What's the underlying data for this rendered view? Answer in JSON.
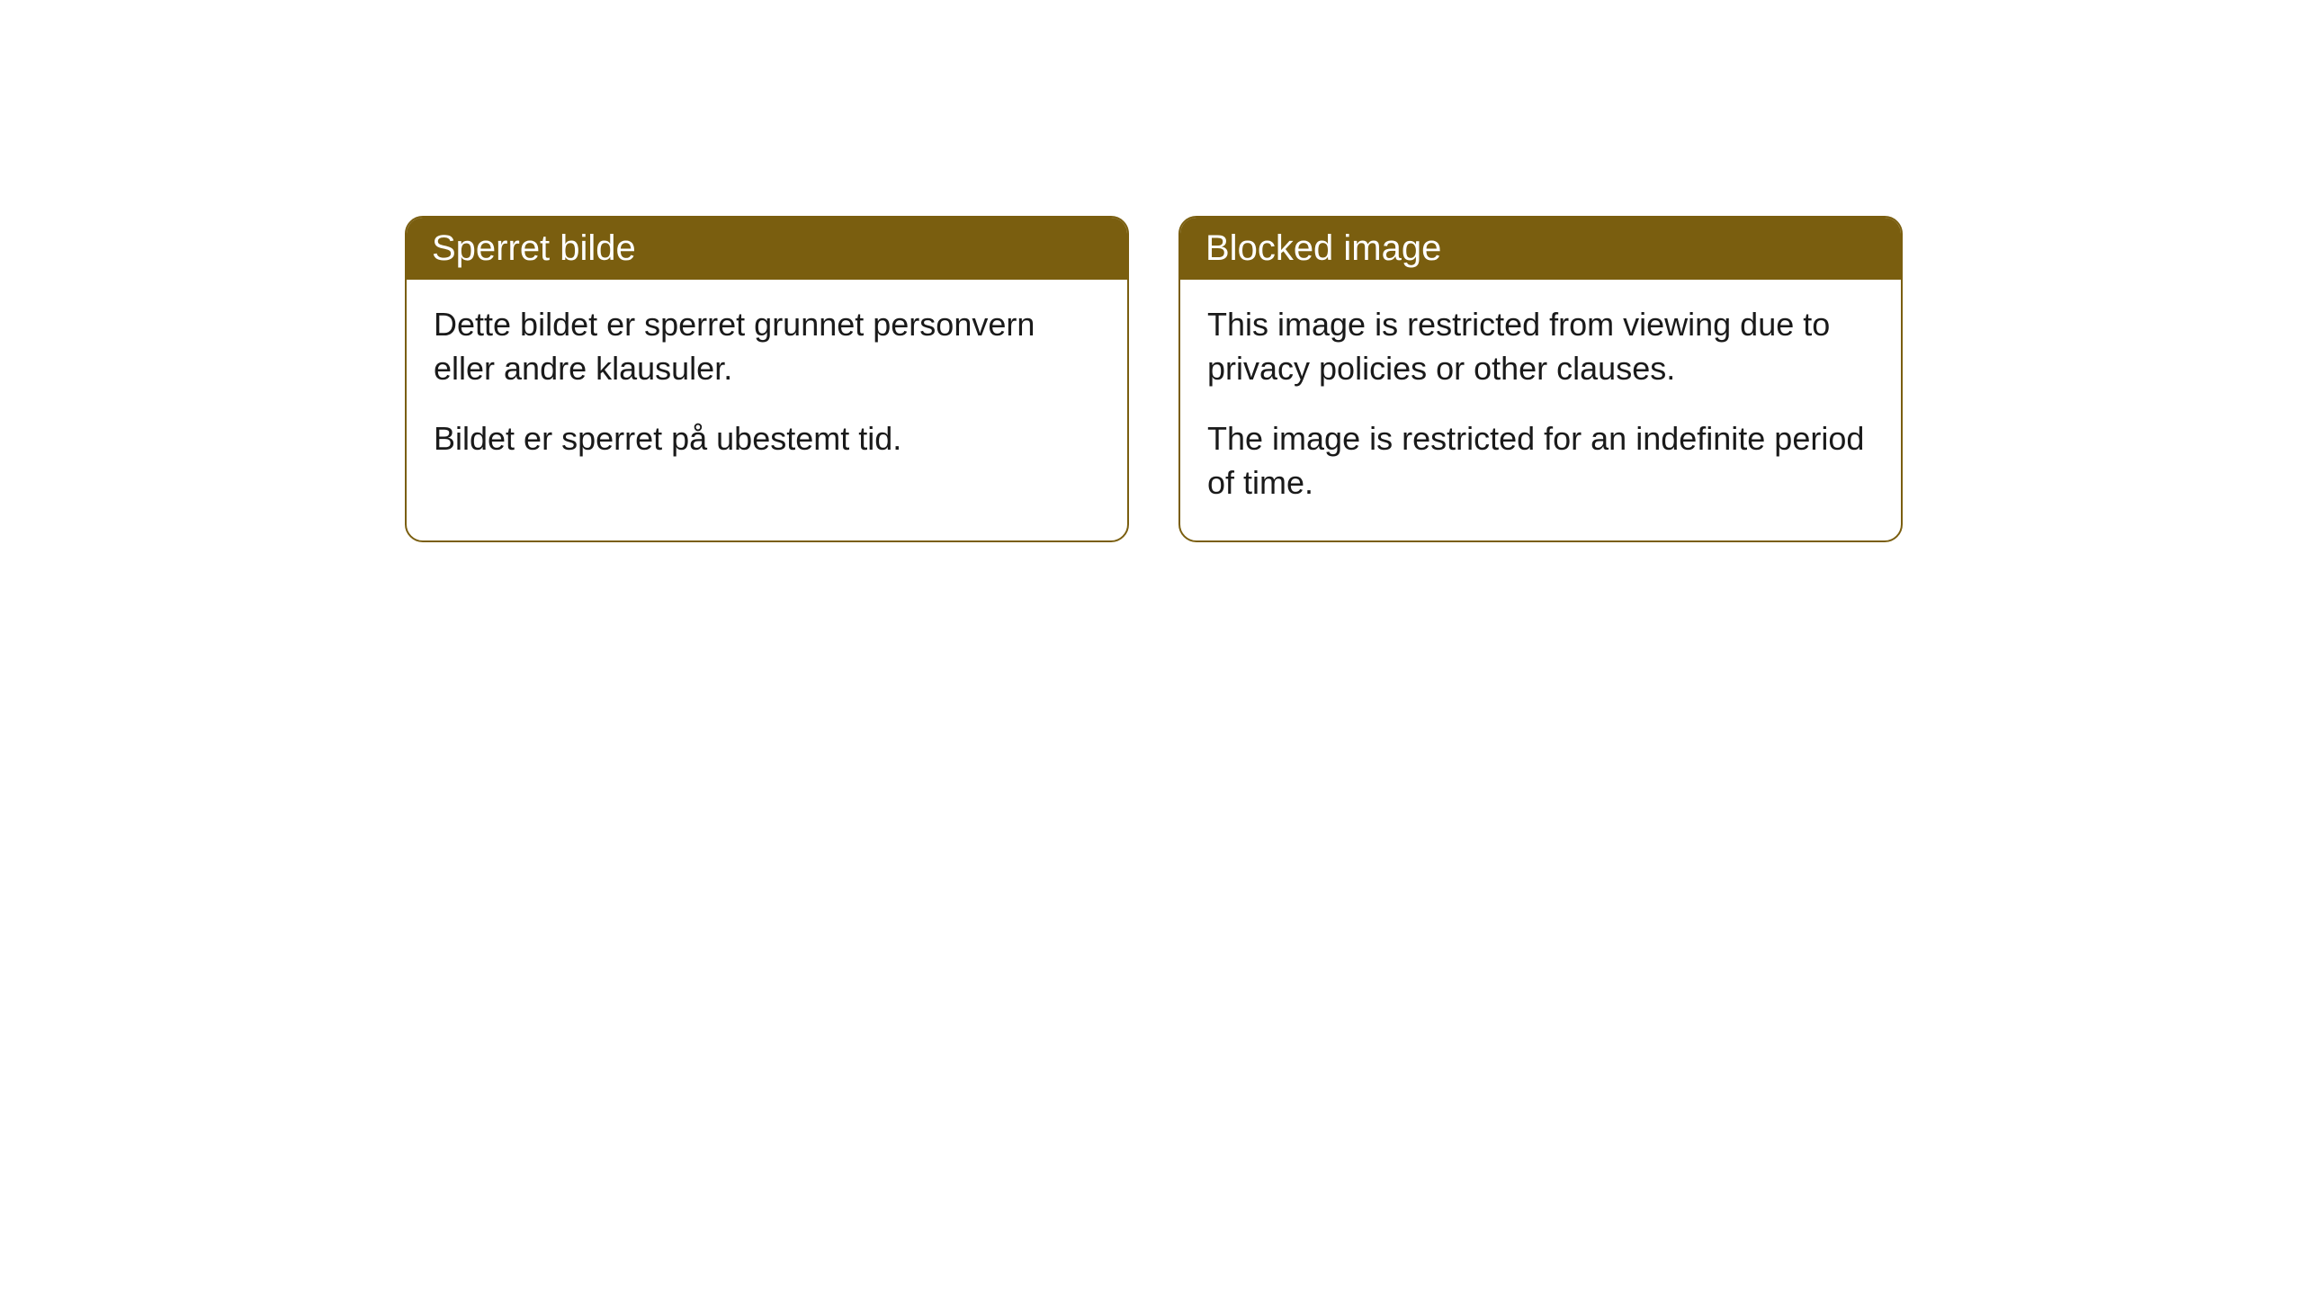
{
  "cards": [
    {
      "title": "Sperret bilde",
      "paragraph1": "Dette bildet er sperret grunnet personvern eller andre klausuler.",
      "paragraph2": "Bildet er sperret på ubestemt tid."
    },
    {
      "title": "Blocked image",
      "paragraph1": "This image is restricted from viewing due to privacy policies or other clauses.",
      "paragraph2": "The image is restricted for an indefinite period of time."
    }
  ],
  "styling": {
    "header_background": "#7a5e0f",
    "header_text_color": "#ffffff",
    "card_border_color": "#7a5e0f",
    "card_background": "#ffffff",
    "body_text_color": "#1a1a1a",
    "page_background": "#ffffff",
    "border_radius": 20,
    "header_fontsize": 40,
    "body_fontsize": 36
  }
}
